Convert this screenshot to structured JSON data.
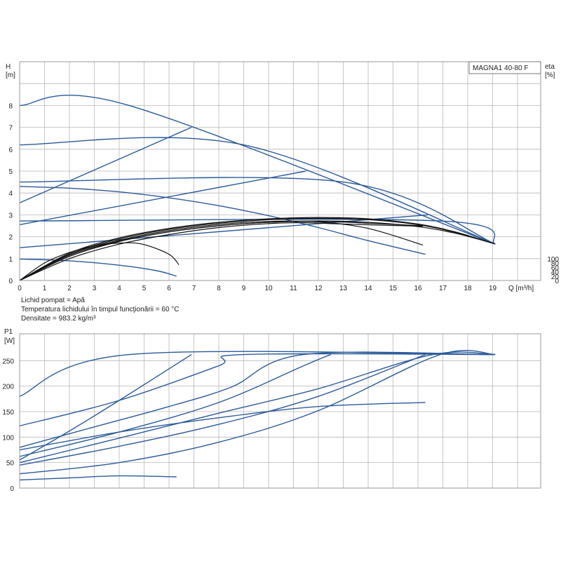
{
  "colors": {
    "blue_curve": "#2a5a9a",
    "black_curve": "#111111",
    "grid": "#b8b8b8"
  },
  "model": "MAGNA1 40-80 F",
  "fluid_info": [
    "Lichid pompat = Apă",
    "Temperatura lichidului în timpul funcţionării = 60 °C",
    "Densitate = 983.2 kg/m³"
  ],
  "chart_data": [
    {
      "id": "head-efficiency",
      "type": "line",
      "grid": true,
      "legend": "top-right",
      "title": "MAGNA1 40-80 F",
      "xlabel": "Q [m³/h]",
      "ylabel_unit_line1": "H",
      "ylabel_unit_line2": "[m]",
      "y2label_unit_line1": "eta",
      "y2label_unit_line2": "[%]",
      "xlim": [
        0,
        21
      ],
      "ylim": [
        0,
        10
      ],
      "y2lim": [
        0,
        100
      ],
      "x_ticks": [
        0,
        1,
        2,
        3,
        4,
        5,
        6,
        7,
        8,
        9,
        10,
        11,
        12,
        13,
        14,
        15,
        16,
        17,
        18,
        19
      ],
      "y_ticks": [
        0,
        1,
        2,
        3,
        4,
        5,
        6,
        7,
        8
      ],
      "y2_ticks": [
        0,
        20,
        40,
        60,
        80,
        100
      ],
      "series": [
        {
          "color": "blue",
          "x": [
            0,
            4.4,
            19.1
          ],
          "y": [
            8.0,
            8.0,
            1.67
          ]
        },
        {
          "color": "blue",
          "x": [
            0,
            9,
            19.1
          ],
          "y": [
            6.2,
            6.2,
            1.67
          ]
        },
        {
          "color": "blue",
          "x": [
            0,
            13,
            19.1
          ],
          "y": [
            4.5,
            4.5,
            1.67
          ]
        },
        {
          "color": "blue",
          "x": [
            0,
            16.9,
            19.1
          ],
          "y": [
            2.72,
            2.72,
            1.67
          ]
        },
        {
          "color": "blue",
          "x": [
            0,
            6.9
          ],
          "y": [
            3.55,
            7.0
          ]
        },
        {
          "color": "blue",
          "x": [
            0,
            11.5
          ],
          "y": [
            2.55,
            5.0
          ]
        },
        {
          "color": "blue",
          "x": [
            0,
            16.4
          ],
          "y": [
            1.5,
            3.0
          ]
        },
        {
          "color": "blue",
          "x": [
            0,
            2,
            4,
            6,
            8,
            10,
            12,
            14,
            16.3
          ],
          "y": [
            4.3,
            4.22,
            4.05,
            3.78,
            3.42,
            2.96,
            2.42,
            1.82,
            1.2
          ]
        },
        {
          "color": "blue",
          "x": [
            0,
            2,
            4,
            5.5,
            6.3
          ],
          "y": [
            0.98,
            0.9,
            0.7,
            0.45,
            0.2
          ]
        },
        {
          "color": "black",
          "x": [
            0,
            1,
            2,
            3,
            4.2,
            5,
            6,
            6.4
          ],
          "y": [
            0,
            0.8,
            1.28,
            1.58,
            1.72,
            1.64,
            1.2,
            0.72
          ]
        },
        {
          "color": "black",
          "x": [
            0,
            2,
            4,
            6,
            8,
            10,
            12,
            14,
            16.2
          ],
          "y": [
            0,
            1.2,
            1.84,
            2.28,
            2.56,
            2.7,
            2.68,
            2.38,
            1.62
          ]
        },
        {
          "color": "black",
          "x": [
            0,
            2,
            4,
            6,
            8,
            10,
            12,
            14,
            16.2
          ],
          "y": [
            0,
            1.15,
            1.8,
            2.22,
            2.5,
            2.66,
            2.7,
            2.62,
            2.5
          ]
        },
        {
          "color": "black",
          "x": [
            0,
            2,
            4,
            6,
            8,
            10,
            12,
            14,
            16,
            17.5,
            19.1
          ],
          "y": [
            0,
            1.25,
            1.95,
            2.38,
            2.66,
            2.82,
            2.88,
            2.82,
            2.58,
            2.22,
            1.67
          ]
        },
        {
          "color": "black",
          "x": [
            0,
            2,
            4,
            6,
            8,
            10,
            12,
            14,
            16,
            17.5,
            19.1
          ],
          "y": [
            0,
            1.2,
            1.9,
            2.34,
            2.62,
            2.78,
            2.84,
            2.78,
            2.55,
            2.2,
            1.67
          ]
        },
        {
          "color": "black",
          "x": [
            0,
            2,
            4,
            6,
            8,
            10,
            12,
            14,
            16,
            17.5,
            19.1
          ],
          "y": [
            0,
            1.1,
            1.78,
            2.22,
            2.5,
            2.66,
            2.72,
            2.66,
            2.46,
            2.16,
            1.67
          ]
        },
        {
          "color": "black",
          "x": [
            0,
            2,
            4,
            6,
            8,
            10,
            11.5,
            13,
            16.2
          ],
          "y": [
            0,
            1.0,
            1.66,
            2.1,
            2.42,
            2.6,
            2.64,
            2.58,
            2.48
          ]
        }
      ]
    },
    {
      "id": "power",
      "type": "line",
      "grid": true,
      "xlabel": "",
      "ylabel_unit_line1": "P1",
      "ylabel_unit_line2": "[W]",
      "xlim": [
        0,
        21
      ],
      "ylim": [
        0,
        280
      ],
      "y_ticks": [
        0,
        50,
        100,
        150,
        200,
        250
      ],
      "series": [
        {
          "color": "blue",
          "x": [
            0,
            4.4,
            19.1
          ],
          "y": [
            180,
            262,
            262
          ]
        },
        {
          "color": "blue",
          "x": [
            0,
            4,
            8,
            9,
            19.1
          ],
          "y": [
            122,
            172,
            240,
            262,
            262
          ]
        },
        {
          "color": "blue",
          "x": [
            0,
            3,
            6,
            8.5,
            11.4,
            19.1
          ],
          "y": [
            80,
            120,
            160,
            198,
            262,
            262
          ]
        },
        {
          "color": "blue",
          "x": [
            0,
            4,
            8,
            12,
            16.6,
            19.1
          ],
          "y": [
            50,
            98,
            147,
            195,
            262,
            262
          ]
        },
        {
          "color": "blue",
          "x": [
            0,
            2,
            4,
            6.9
          ],
          "y": [
            55,
            112,
            172,
            262
          ]
        },
        {
          "color": "blue",
          "x": [
            0,
            4,
            8,
            11.5,
            12.5
          ],
          "y": [
            62,
            110,
            168,
            242,
            262
          ]
        },
        {
          "color": "blue",
          "x": [
            0,
            4,
            8,
            12,
            16.3
          ],
          "y": [
            45,
            82,
            125,
            180,
            262
          ]
        },
        {
          "color": "blue",
          "x": [
            0,
            4,
            8,
            12,
            16.9,
            19.1
          ],
          "y": [
            28,
            50,
            90,
            152,
            262,
            262
          ]
        },
        {
          "color": "blue",
          "x": [
            0,
            4,
            8,
            12,
            16.3
          ],
          "y": [
            75,
            110,
            138,
            160,
            168
          ]
        },
        {
          "color": "blue",
          "x": [
            0,
            2,
            4,
            6.3
          ],
          "y": [
            16,
            20,
            24,
            22
          ]
        }
      ]
    }
  ]
}
